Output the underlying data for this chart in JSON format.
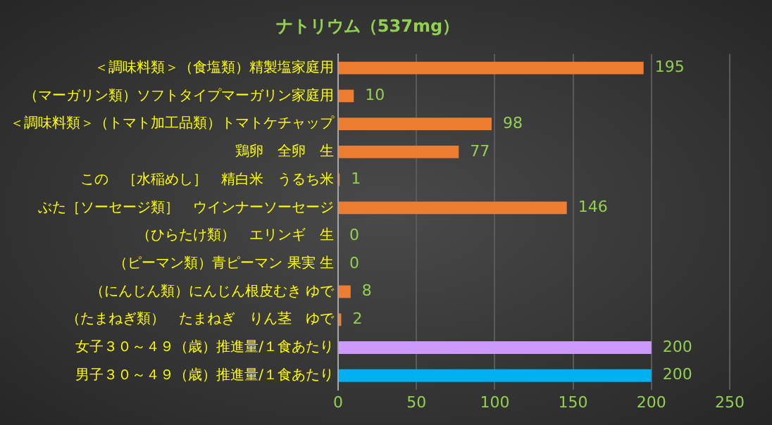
{
  "chart_data": {
    "type": "bar",
    "orientation": "horizontal",
    "title": "ナトリウム（537mg）",
    "categories": [
      "＜調味料類＞（食塩類）精製塩家庭用",
      "（マーガリン類）ソフトタイプマーガリン家庭用",
      "＜調味料類＞（トマト加工品類）トマトケチャップ",
      "鶏卵　全卵　生",
      "この　［水稲めし］　精白米　うるち米",
      "ぶた［ソーセージ類］　ウインナーソーセージ",
      "（ひらたけ類）　エリンギ　生",
      "（ピーマン類）青ピーマン 果実 生",
      "（にんじん類）にんじん根皮むき ゆで",
      "（たまねぎ類）　たまねぎ　りん茎　ゆで",
      "女子３０～４９（歳）推進量/１食あたり",
      "男子３０～４９（歳）推進量/１食あたり"
    ],
    "values": [
      195,
      10,
      98,
      77,
      1,
      146,
      0,
      0,
      8,
      2,
      200,
      200
    ],
    "colors": [
      "#ed7d31",
      "#ed7d31",
      "#ed7d31",
      "#ed7d31",
      "#ed7d31",
      "#ed7d31",
      "#ed7d31",
      "#ed7d31",
      "#ed7d31",
      "#ed7d31",
      "#cc99ff",
      "#00b0f0"
    ],
    "xlim": [
      0,
      250
    ],
    "xticks": [
      0,
      50,
      100,
      150,
      200,
      250
    ],
    "grid": "x",
    "data_labels": true
  }
}
